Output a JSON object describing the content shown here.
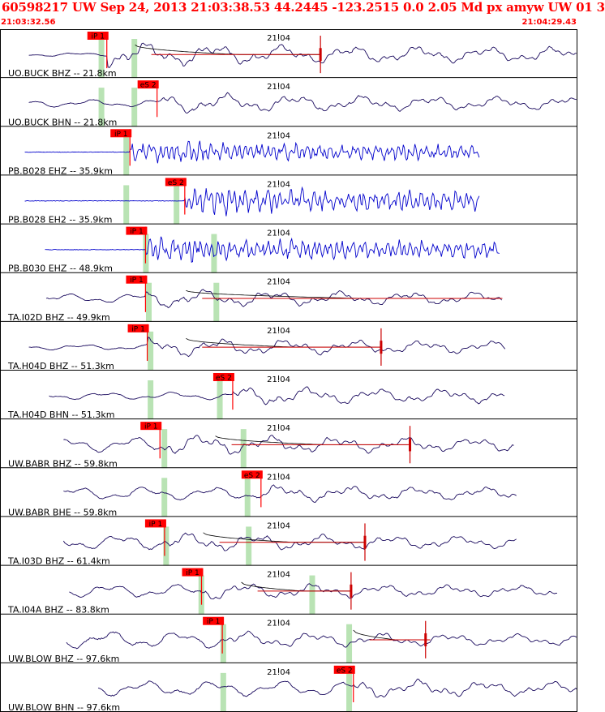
{
  "header": {
    "title": "60598217 UW Sep 24, 2013 21:03:38.53   44.2445 -123.2515  0.0 2.05 Md px amyw UW 01   3",
    "start_time": "21:03:32.56",
    "end_time": "21:04:29.43"
  },
  "colors": {
    "header_text": "#ff0000",
    "pick_box": "#ff0000",
    "pick_bar": "#b9e3b4",
    "trace_dark": "#1a0a5e",
    "trace_blue": "#0000cc",
    "red_line": "#cc0000",
    "grid": "#000000"
  },
  "chart_data": {
    "type": "line",
    "title": "",
    "x_range": [
      "21:03:32.56",
      "21:04:29.43"
    ],
    "minute_marker": "21:04",
    "traces": [
      {
        "label": "UO.BUCK BHZ -- 21.8km",
        "color": "dark",
        "onset": 0.05,
        "noise": 0.1,
        "signal": 0.65,
        "pick": {
          "label": "iP 1",
          "pos": 0.185
        },
        "green_bars": [
          0.175,
          0.232
        ],
        "coda": {
          "t0": 0.234,
          "t1": 0.555,
          "amp": 0.22
        },
        "red_mark": 0.555,
        "red_end": 0.56
      },
      {
        "label": "UO.BUCK BHN -- 21.8km",
        "color": "dark",
        "onset": 0.05,
        "noise": 0.2,
        "signal": 0.55,
        "pick": {
          "label": "eS 2",
          "pos": 0.272
        },
        "green_bars": [
          0.175,
          0.232
        ]
      },
      {
        "label": "PB.B028 EHZ -- 35.9km",
        "color": "blue",
        "onset": 0.043,
        "end": 0.83,
        "noise": 0.02,
        "signal": 0.45,
        "pick": {
          "label": "iP 1",
          "pos": 0.225
        },
        "green_bars": [
          0.218
        ]
      },
      {
        "label": "PB.B028 EH2 -- 35.9km",
        "color": "blue",
        "onset": 0.043,
        "end": 0.83,
        "noise": 0.02,
        "signal": 0.55,
        "pick": {
          "label": "eS 2",
          "pos": 0.32
        },
        "green_bars": [
          0.218,
          0.305
        ]
      },
      {
        "label": "PB.B030 EHZ -- 48.9km",
        "color": "blue",
        "onset": 0.078,
        "end": 0.865,
        "noise": 0.02,
        "signal": 0.5,
        "pick": {
          "label": "iP 1",
          "pos": 0.252
        },
        "green_bars": [
          0.252,
          0.37
        ]
      },
      {
        "label": "TA.I02D BHZ -- 49.9km",
        "color": "dark",
        "onset": 0.08,
        "end": 0.87,
        "noise": 0.25,
        "signal": 0.5,
        "pick": {
          "label": "iP 1",
          "pos": 0.252
        },
        "green_bars": [
          0.257,
          0.374
        ],
        "coda": {
          "t0": 0.322,
          "t1": 0.87,
          "amp": 0.18
        }
      },
      {
        "label": "TA.H04D BHZ -- 51.3km",
        "color": "dark",
        "onset": 0.05,
        "end": 0.875,
        "noise": 0.15,
        "signal": 0.5,
        "pick": {
          "label": "iP 1",
          "pos": 0.255
        },
        "green_bars": [
          0.26
        ],
        "coda": {
          "t0": 0.322,
          "t1": 0.66,
          "amp": 0.2
        },
        "red_mark": 0.66,
        "red_end": 0.662
      },
      {
        "label": "TA.H04D BHN -- 51.3km",
        "color": "dark",
        "onset": 0.085,
        "end": 0.875,
        "noise": 0.2,
        "signal": 0.5,
        "pick": {
          "label": "eS 2",
          "pos": 0.403
        },
        "green_bars": [
          0.26,
          0.38
        ]
      },
      {
        "label": "UW.BABR BHZ -- 59.8km",
        "color": "dark",
        "onset": 0.11,
        "end": 0.89,
        "noise": 0.4,
        "signal": 0.55,
        "pick": {
          "label": "iP 1",
          "pos": 0.277
        },
        "green_bars": [
          0.284,
          0.421
        ],
        "coda": {
          "t0": 0.373,
          "t1": 0.71,
          "amp": 0.2
        },
        "red_mark": 0.71,
        "red_end": 0.712
      },
      {
        "label": "UW.BABR BHE -- 59.8km",
        "color": "dark",
        "onset": 0.11,
        "end": 0.895,
        "noise": 0.35,
        "signal": 0.45,
        "pick": {
          "label": "eS 2",
          "pos": 0.452
        },
        "green_bars": [
          0.284,
          0.428
        ]
      },
      {
        "label": "TA.I03D BHZ -- 61.4km",
        "color": "dark",
        "onset": 0.11,
        "end": 0.895,
        "noise": 0.4,
        "signal": 0.5,
        "pick": {
          "label": "iP 1",
          "pos": 0.285
        },
        "green_bars": [
          0.287,
          0.43
        ],
        "coda": {
          "t0": 0.352,
          "t1": 0.632,
          "amp": 0.22
        },
        "red_mark": 0.632,
        "red_end": 0.634
      },
      {
        "label": "TA.I04A BHZ -- 83.8km",
        "color": "dark",
        "onset": 0.12,
        "end": 0.965,
        "noise": 0.35,
        "signal": 0.45,
        "pick": {
          "label": "iP 1",
          "pos": 0.349
        },
        "green_bars": [
          0.348,
          0.54
        ],
        "coda": {
          "t0": 0.418,
          "t1": 0.608,
          "amp": 0.2
        },
        "red_mark": 0.608,
        "red_end": 0.61
      },
      {
        "label": "UW.BLOW BHZ -- 97.6km",
        "color": "dark",
        "onset": 0.115,
        "end": 1.0,
        "noise": 0.45,
        "signal": 0.45,
        "pick": {
          "label": "iP 1",
          "pos": 0.385
        },
        "green_bars": [
          0.386,
          0.604
        ],
        "coda": {
          "t0": 0.612,
          "t1": 0.745,
          "amp": 0.22
        },
        "red_mark": 0.737,
        "red_end": 0.745
      },
      {
        "label": "UW.BLOW BHN -- 97.6km",
        "color": "dark",
        "onset": 0.17,
        "end": 1.0,
        "noise": 0.4,
        "signal": 0.5,
        "pick": {
          "label": "eS 2",
          "pos": 0.612
        },
        "green_bars": [
          0.386,
          0.604
        ]
      }
    ]
  }
}
